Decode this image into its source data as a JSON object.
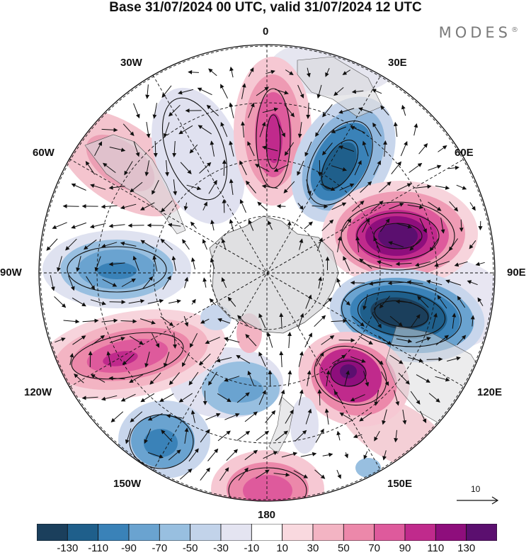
{
  "title": "Base 31/07/2024 00 UTC, valid 31/07/2024 12 UTC",
  "brand": "MODES",
  "brand_mark": "®",
  "longitude_labels": {
    "lon_0": "0",
    "lon_30e": "30E",
    "lon_60e": "60E",
    "lon_90e": "90E",
    "lon_120e": "120E",
    "lon_150e": "150E",
    "lon_180": "180",
    "lon_150w": "150W",
    "lon_120w": "120W",
    "lon_90w": "90W",
    "lon_60w": "60W",
    "lon_30w": "30W"
  },
  "reference_vector": {
    "label": "10"
  },
  "colorbar": {
    "tick_labels": [
      "-130",
      "-110",
      "-90",
      "-70",
      "-50",
      "-30",
      "-10",
      "10",
      "30",
      "50",
      "70",
      "90",
      "110",
      "130"
    ],
    "colors": [
      "#1b3f5c",
      "#1f5f8b",
      "#3a82b8",
      "#6aa3d0",
      "#98bfe0",
      "#c2d3ea",
      "#e4e4f1",
      "#ffffff",
      "#f9d9df",
      "#f3b4c3",
      "#ec88aa",
      "#de5a9c",
      "#c02a8c",
      "#8e0e7c",
      "#5b0f6f"
    ]
  },
  "map_features": {
    "projection": "south polar stereographic",
    "icons": [
      "antarctica-landmass",
      "coastline",
      "graticule",
      "wind-vectors"
    ]
  }
}
